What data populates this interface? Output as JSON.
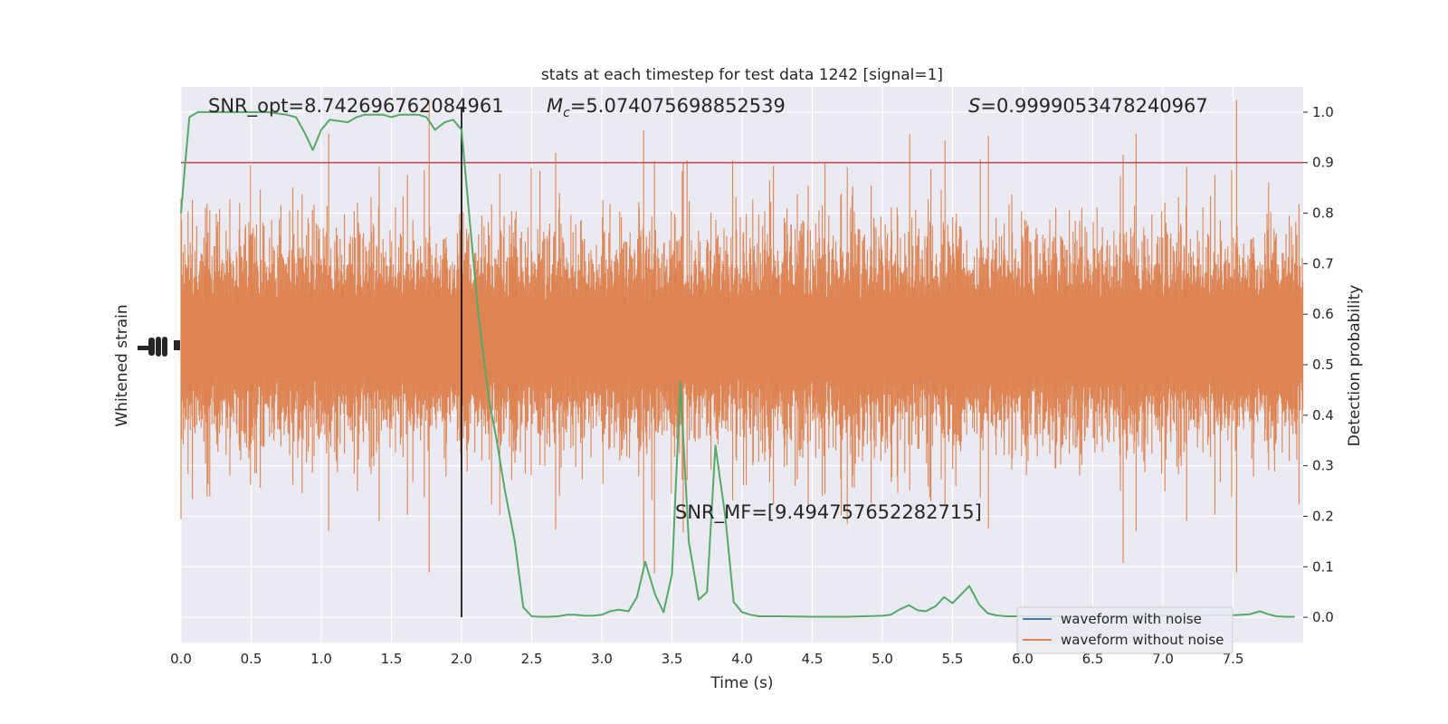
{
  "chart_data": {
    "type": "line",
    "title": "stats at each timestep for test data 1242 [signal=1]",
    "xlabel": "Time (s)",
    "ylabel_left": "Whitened strain",
    "ylabel_right": "Detection probability",
    "xlim": [
      0.0,
      8.0
    ],
    "ylim_right": [
      -0.05,
      1.05
    ],
    "x_ticks": [
      "0.0",
      "0.5",
      "1.0",
      "1.5",
      "2.0",
      "2.5",
      "3.0",
      "3.5",
      "4.0",
      "4.5",
      "5.0",
      "5.5",
      "6.0",
      "6.5",
      "7.0",
      "7.5"
    ],
    "x_tick_values": [
      0.0,
      0.5,
      1.0,
      1.5,
      2.0,
      2.5,
      3.0,
      3.5,
      4.0,
      4.5,
      5.0,
      5.5,
      6.0,
      6.5,
      7.0,
      7.5
    ],
    "y_right_ticks": [
      "0.0",
      "0.1",
      "0.2",
      "0.3",
      "0.4",
      "0.5",
      "0.6",
      "0.7",
      "0.8",
      "0.9",
      "1.0"
    ],
    "y_right_tick_values": [
      0.0,
      0.1,
      0.2,
      0.3,
      0.4,
      0.5,
      0.6,
      0.7,
      0.8,
      0.9,
      1.0
    ],
    "grid": true,
    "legend_position": "lower-right",
    "legend": [
      {
        "name": "waveform with noise",
        "color": "#4c72b0"
      },
      {
        "name": "waveform without noise",
        "color": "#dd8452"
      }
    ],
    "annotations": {
      "snr_opt": "SNR_opt=8.742696762084961",
      "mc_symbol": "M",
      "mc_sub": "c",
      "mc_value": "=5.074075698852539",
      "s_symbol": "S",
      "s_value": "=0.9999053478240967",
      "snr_mf": "SNR_MF=[9.494757652282715]"
    },
    "threshold": {
      "y": 0.9,
      "color": "#c44e52"
    },
    "vline": {
      "x": 2.0,
      "color": "#000000"
    },
    "waveform_color": "#dd8452",
    "probability_color": "#55a868",
    "probability_series": {
      "x": [
        0.0,
        0.03,
        0.06,
        0.12,
        0.25,
        0.38,
        0.5,
        0.62,
        0.75,
        0.82,
        0.88,
        0.94,
        1.0,
        1.06,
        1.19,
        1.25,
        1.31,
        1.44,
        1.5,
        1.56,
        1.69,
        1.75,
        1.81,
        1.88,
        1.94,
        2.0,
        2.06,
        2.12,
        2.19,
        2.25,
        2.31,
        2.38,
        2.44,
        2.5,
        2.56,
        2.62,
        2.69,
        2.75,
        2.81,
        2.88,
        2.94,
        3.0,
        3.06,
        3.12,
        3.19,
        3.25,
        3.31,
        3.38,
        3.44,
        3.5,
        3.56,
        3.62,
        3.69,
        3.75,
        3.81,
        3.88,
        3.94,
        4.0,
        4.06,
        4.12,
        4.25,
        4.5,
        4.75,
        5.0,
        5.06,
        5.12,
        5.19,
        5.25,
        5.31,
        5.38,
        5.44,
        5.5,
        5.56,
        5.62,
        5.69,
        5.75,
        5.81,
        5.88,
        6.0,
        6.5,
        7.0,
        7.5,
        7.62,
        7.69,
        7.75,
        7.81,
        7.88,
        7.94
      ],
      "values": [
        0.8,
        0.9,
        0.99,
        1.0,
        1.0,
        1.0,
        1.0,
        1.0,
        0.995,
        0.99,
        0.96,
        0.925,
        0.965,
        0.985,
        0.98,
        0.99,
        0.995,
        0.995,
        0.99,
        0.995,
        0.995,
        0.99,
        0.965,
        0.98,
        0.985,
        0.965,
        0.78,
        0.6,
        0.44,
        0.35,
        0.25,
        0.15,
        0.02,
        0.002,
        0.001,
        0.001,
        0.002,
        0.005,
        0.005,
        0.003,
        0.003,
        0.005,
        0.012,
        0.015,
        0.012,
        0.04,
        0.11,
        0.045,
        0.01,
        0.085,
        0.465,
        0.15,
        0.035,
        0.05,
        0.34,
        0.2,
        0.03,
        0.01,
        0.005,
        0.002,
        0.002,
        0.001,
        0.001,
        0.003,
        0.005,
        0.015,
        0.024,
        0.014,
        0.012,
        0.022,
        0.04,
        0.028,
        0.045,
        0.062,
        0.025,
        0.008,
        0.004,
        0.002,
        0.002,
        0.002,
        0.003,
        0.004,
        0.006,
        0.012,
        0.006,
        0.002,
        0.001,
        0.001
      ]
    }
  }
}
